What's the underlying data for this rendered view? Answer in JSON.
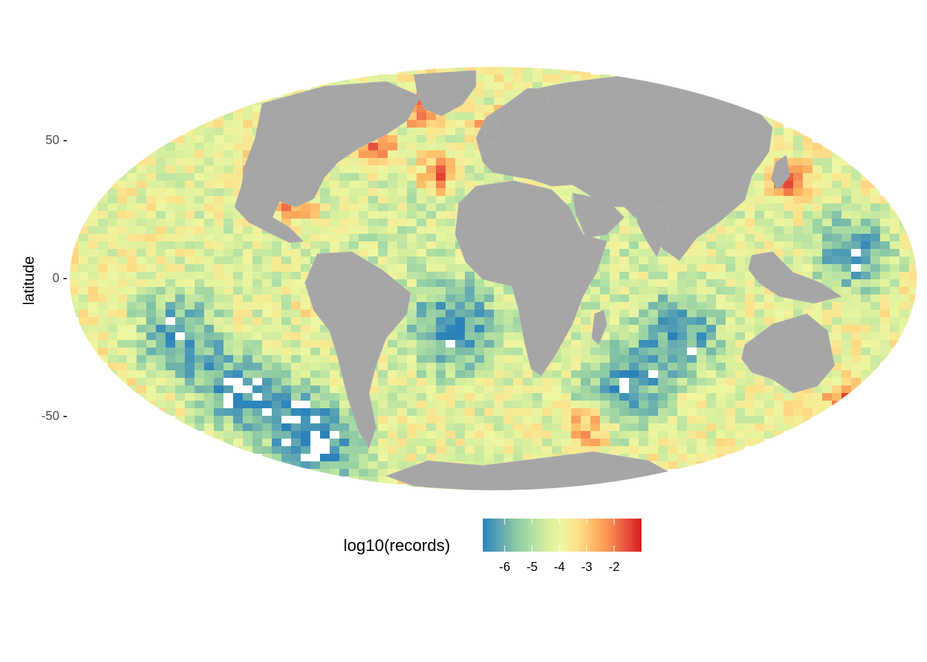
{
  "map": {
    "projection": "mollweide",
    "ocean_cell_palette": "spectral",
    "land_color": "#a6a6a6",
    "background": "#ffffff"
  },
  "axis": {
    "ylabel": "latitude",
    "yticks": [
      {
        "value": 50,
        "label": "50"
      },
      {
        "value": 0,
        "label": "0"
      },
      {
        "value": -50,
        "label": "-50"
      }
    ]
  },
  "legend": {
    "title": "log10(records)",
    "range": [
      -6.8,
      -1.0
    ],
    "ticks": [
      {
        "value": -6,
        "label": "-6"
      },
      {
        "value": -5,
        "label": "-5"
      },
      {
        "value": -4,
        "label": "-4"
      },
      {
        "value": -3,
        "label": "-3"
      },
      {
        "value": -2,
        "label": "-2"
      }
    ],
    "colors": [
      "#2b83ba",
      "#5aa3b4",
      "#88c6a4",
      "#abdda4",
      "#d5ee9e",
      "#eef7a0",
      "#fee08b",
      "#fdb863",
      "#f88d52",
      "#e8553f",
      "#d7191c"
    ]
  }
}
